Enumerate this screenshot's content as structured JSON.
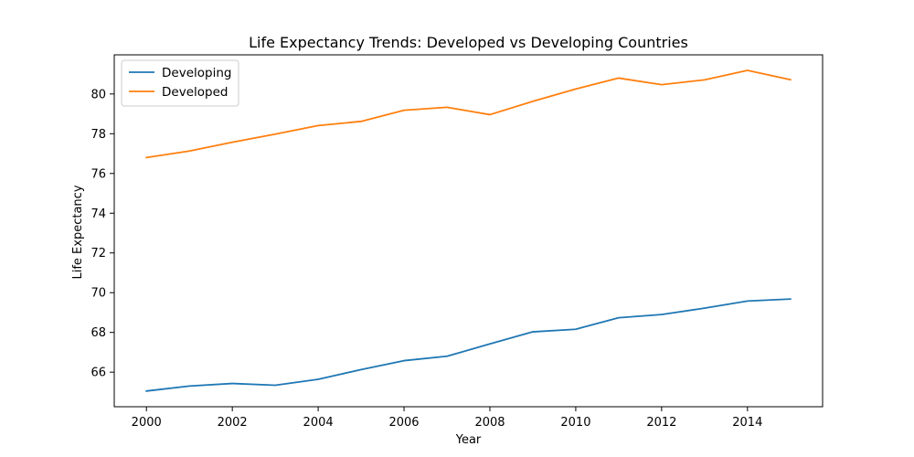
{
  "chart_data": {
    "type": "line",
    "title": "Life Expectancy Trends: Developed vs Developing Countries",
    "xlabel": "Year",
    "ylabel": "Life Expectancy",
    "x": [
      2000,
      2001,
      2002,
      2003,
      2004,
      2005,
      2006,
      2007,
      2008,
      2009,
      2010,
      2011,
      2012,
      2013,
      2014,
      2015
    ],
    "xlim": [
      1999.25,
      2015.75
    ],
    "ylim": [
      64.26,
      81.97
    ],
    "xticks": [
      2000,
      2002,
      2004,
      2006,
      2008,
      2010,
      2012,
      2014
    ],
    "yticks": [
      66,
      68,
      70,
      72,
      74,
      76,
      78,
      80
    ],
    "grid": false,
    "legend_position": "top-left",
    "series": [
      {
        "name": "Developing",
        "color": "#1f77b4",
        "values": [
          65.05,
          65.3,
          65.43,
          65.34,
          65.64,
          66.13,
          66.58,
          66.8,
          67.42,
          68.03,
          68.16,
          68.74,
          68.9,
          69.22,
          69.58,
          69.68
        ]
      },
      {
        "name": "Developed",
        "color": "#ff7f0e",
        "values": [
          76.8,
          77.13,
          77.57,
          77.98,
          78.41,
          78.62,
          79.18,
          79.33,
          78.96,
          79.63,
          80.25,
          80.8,
          80.47,
          80.71,
          81.19,
          80.72
        ]
      }
    ]
  }
}
